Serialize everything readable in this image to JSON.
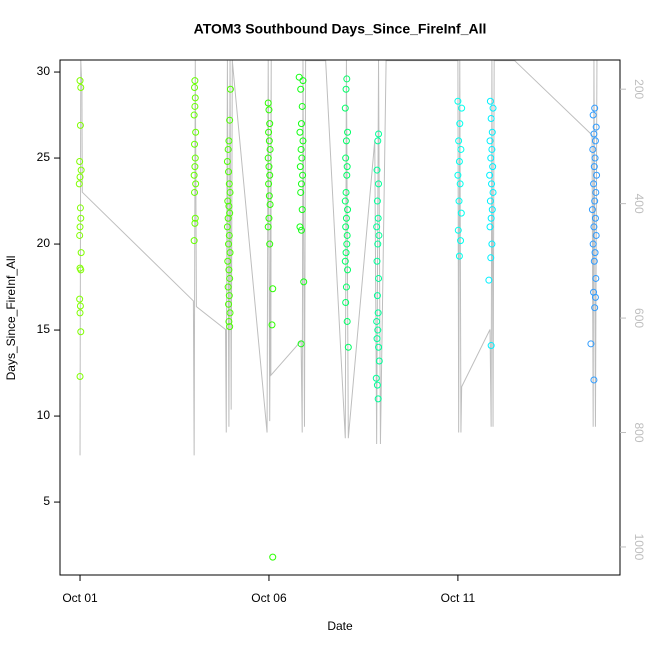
{
  "chart_data": {
    "type": "scatter",
    "title": "ATOM3 Southbound Days_Since_FireInf_All",
    "x_label": "Date",
    "y_label": "Days_Since_FireInf_All",
    "xlim": [
      -0.53,
      14.29
    ],
    "ylim": [
      0.76,
      30.7
    ],
    "y2lim": [
      1049,
      149
    ],
    "xticks": [
      {
        "value": 0,
        "label": "Oct 01"
      },
      {
        "value": 5,
        "label": "Oct 06"
      },
      {
        "value": 10,
        "label": "Oct 11"
      }
    ],
    "yticks": [
      5,
      10,
      15,
      20,
      25,
      30
    ],
    "y2ticks": [
      200,
      400,
      600,
      800,
      1000
    ],
    "y2color": "#bebebe",
    "series": [
      {
        "color": "#80ff00",
        "x": [
          0.0,
          0.02,
          0.01,
          -0.01,
          0.03,
          0.0,
          -0.02,
          0.01,
          0.02,
          0.0,
          -0.01,
          0.03,
          0.0,
          0.02,
          -0.01,
          0.01,
          0.0,
          0.02,
          0.0
        ],
        "values": [
          29.5,
          29.1,
          26.9,
          24.8,
          24.3,
          23.9,
          23.5,
          22.1,
          21.5,
          21.0,
          20.5,
          19.5,
          18.6,
          18.5,
          16.8,
          16.4,
          16.0,
          14.9,
          12.3
        ]
      },
      {
        "color": "#66ff00",
        "x": [
          3.04,
          3.03,
          3.05,
          3.04,
          3.02,
          3.06,
          3.03,
          3.05,
          3.04,
          3.02,
          3.06,
          3.03,
          3.05,
          3.04,
          3.02
        ],
        "values": [
          29.5,
          29.1,
          28.5,
          28.0,
          27.5,
          26.5,
          25.8,
          25.0,
          24.5,
          24.0,
          23.5,
          23.0,
          21.5,
          21.2,
          20.2
        ]
      },
      {
        "color": "#4cff00",
        "x": [
          3.98,
          3.96,
          3.94,
          3.92,
          3.9,
          3.93,
          3.95,
          3.97,
          3.91,
          3.94,
          3.96,
          3.92,
          3.9,
          3.95,
          3.93,
          3.97,
          3.91,
          3.94,
          3.96,
          3.92,
          3.95,
          3.93,
          3.97,
          3.94,
          3.96
        ],
        "values": [
          29.0,
          27.2,
          26.0,
          25.5,
          24.8,
          24.2,
          23.5,
          23.0,
          22.5,
          22.2,
          21.8,
          21.5,
          21.0,
          20.5,
          20.0,
          19.5,
          19.0,
          18.5,
          18.0,
          17.5,
          17.0,
          16.5,
          16.0,
          15.5,
          15.2
        ]
      },
      {
        "color": "#2bff00",
        "x": [
          4.98,
          5.0,
          5.02,
          4.99,
          5.01,
          5.03,
          4.98,
          5.0,
          5.02,
          4.99,
          5.01,
          5.03,
          5.0,
          4.98,
          5.02,
          5.1,
          5.08,
          5.1
        ],
        "values": [
          28.2,
          27.8,
          27.0,
          26.5,
          26.0,
          25.5,
          25.0,
          24.5,
          24.0,
          23.5,
          22.8,
          22.3,
          21.5,
          21.0,
          20.0,
          17.4,
          15.3,
          1.8
        ]
      },
      {
        "color": "#13ff13",
        "x": [
          5.8,
          5.9,
          5.84,
          5.88,
          5.86,
          5.82,
          5.9,
          5.85,
          5.87,
          5.83,
          5.89,
          5.86,
          5.84,
          5.88,
          5.82,
          5.86,
          5.92,
          5.85
        ],
        "values": [
          29.7,
          29.5,
          29.0,
          28.0,
          27.0,
          26.5,
          26.0,
          25.5,
          25.0,
          24.5,
          24.0,
          23.5,
          23.0,
          22.0,
          21.0,
          20.8,
          17.8,
          14.2
        ]
      },
      {
        "color": "#00ff66",
        "x": [
          7.06,
          7.04,
          7.02,
          7.08,
          7.05,
          7.03,
          7.07,
          7.06,
          7.04,
          7.02,
          7.08,
          7.05,
          7.03,
          7.07,
          7.06,
          7.04,
          7.02,
          7.08,
          7.05,
          7.03,
          7.07,
          7.1
        ],
        "values": [
          29.6,
          29.0,
          27.9,
          26.5,
          26.0,
          25.0,
          24.5,
          24.0,
          23.0,
          22.5,
          22.0,
          21.5,
          21.0,
          20.5,
          20.0,
          19.5,
          19.0,
          18.5,
          17.5,
          16.6,
          15.5,
          14.0
        ]
      },
      {
        "color": "#00ff99",
        "x": [
          7.9,
          7.88,
          7.86,
          7.9,
          7.87,
          7.89,
          7.85,
          7.91,
          7.88,
          7.86,
          7.9,
          7.87,
          7.89,
          7.85,
          7.88,
          7.86,
          7.9,
          7.92,
          7.84,
          7.87,
          7.89
        ],
        "values": [
          26.4,
          26.0,
          24.3,
          23.5,
          22.5,
          21.5,
          21.0,
          20.5,
          20.0,
          19.0,
          18.0,
          17.0,
          16.0,
          15.5,
          15.0,
          14.5,
          14.0,
          13.2,
          12.2,
          11.8,
          11.0
        ]
      },
      {
        "color": "#00ffee",
        "x": [
          10.0,
          10.1,
          10.05,
          10.02,
          10.08,
          10.04,
          10.0,
          10.06,
          10.03,
          10.09,
          10.01,
          10.07,
          10.04
        ],
        "values": [
          28.3,
          27.9,
          27.0,
          26.0,
          25.5,
          24.8,
          24.0,
          23.5,
          22.5,
          21.8,
          20.8,
          20.2,
          19.3
        ]
      },
      {
        "color": "#00f0ff",
        "x": [
          10.86,
          10.93,
          10.88,
          10.91,
          10.85,
          10.9,
          10.87,
          10.92,
          10.84,
          10.89,
          10.93,
          10.86,
          10.91,
          10.88,
          10.85,
          10.9,
          10.87,
          10.82,
          10.88
        ],
        "values": [
          28.3,
          27.9,
          27.3,
          26.5,
          26.0,
          25.5,
          25.0,
          24.5,
          24.0,
          23.5,
          23.0,
          22.5,
          22.0,
          21.5,
          21.0,
          20.0,
          19.2,
          17.9,
          14.1
        ]
      },
      {
        "color": "#2f9cff",
        "x": [
          13.62,
          13.58,
          13.66,
          13.6,
          13.64,
          13.57,
          13.63,
          13.61,
          13.67,
          13.59,
          13.65,
          13.62,
          13.56,
          13.64,
          13.6,
          13.66,
          13.58,
          13.63,
          13.61,
          13.65,
          13.59,
          13.64,
          13.62,
          13.52,
          13.6
        ],
        "values": [
          27.9,
          27.5,
          26.8,
          26.4,
          26.0,
          25.5,
          25.0,
          24.5,
          24.0,
          23.5,
          23.0,
          22.5,
          22.0,
          21.5,
          21.0,
          20.5,
          20.0,
          19.5,
          19.0,
          18.0,
          17.2,
          16.9,
          16.3,
          14.2,
          12.1
        ]
      },
      {
        "type": "line",
        "axis": "y2",
        "color": "#bebebe",
        "x": [
          0.0,
          0.02,
          0.05,
          0.06,
          3.0,
          3.02,
          3.05,
          3.08,
          3.85,
          3.87,
          3.9,
          3.94,
          3.97,
          4.0,
          4.03,
          4.1,
          4.95,
          4.98,
          5.02,
          5.06,
          5.05,
          5.85,
          5.88,
          5.9,
          5.94,
          5.97,
          6.0,
          6.5,
          7.02,
          7.05,
          7.1,
          7.8,
          7.85,
          7.9,
          7.95,
          8.1,
          10.0,
          10.02,
          10.05,
          10.08,
          10.1,
          10.85,
          10.88,
          10.9,
          10.93,
          10.96,
          11.5,
          13.55,
          13.58,
          13.6,
          13.64,
          13.68
        ],
        "values": [
          840,
          150,
          200,
          380,
          570,
          840,
          150,
          580,
          620,
          800,
          150,
          790,
          150,
          760,
          150,
          200,
          800,
          150,
          780,
          150,
          700,
          640,
          800,
          150,
          790,
          150,
          150,
          150,
          810,
          150,
          810,
          290,
          820,
          150,
          820,
          150,
          150,
          800,
          150,
          800,
          720,
          620,
          790,
          150,
          790,
          150,
          150,
          280,
          790,
          150,
          790,
          150
        ]
      }
    ]
  }
}
